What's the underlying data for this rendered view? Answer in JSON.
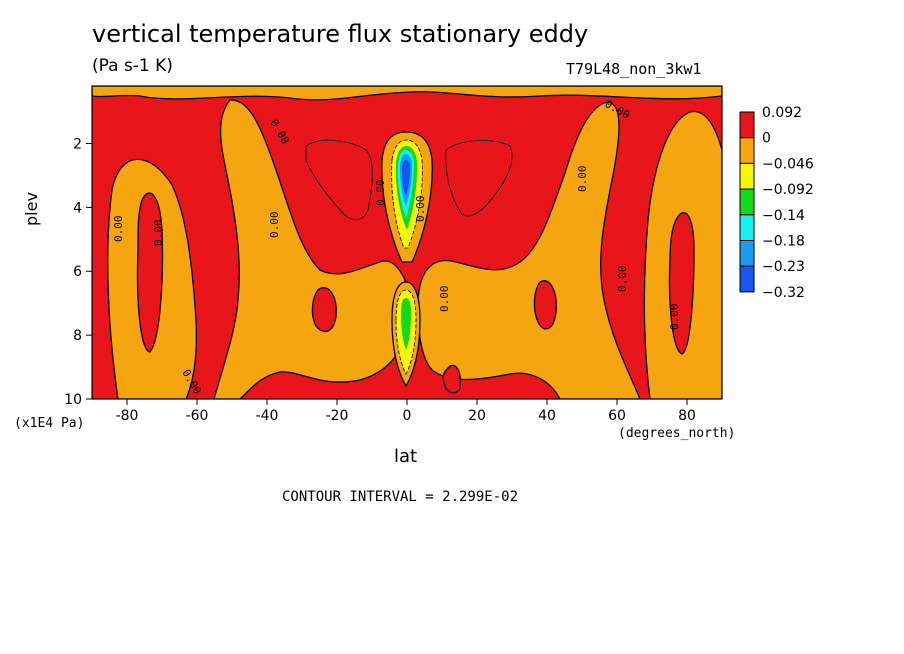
{
  "chart_data": {
    "type": "heatmap",
    "title": "vertical temperature flux stationary eddy",
    "units": "(Pa s-1 K)",
    "dataset": "T79L48_non_3kw1",
    "xlabel": "lat",
    "xunits": "(degrees_north)",
    "ylabel": "plev",
    "yunits": "(x1E4 Pa)",
    "contour_interval_text": "CONTOUR INTERVAL = 2.299E-02",
    "xlim": [
      -90,
      90
    ],
    "ylim": [
      10,
      0.2
    ],
    "xticks": [
      -80,
      -60,
      -40,
      -20,
      0,
      20,
      40,
      60,
      80
    ],
    "yticks": [
      2,
      4,
      6,
      8,
      10
    ],
    "colorbar": {
      "labels": [
        "0.092",
        "0",
        "−0.046",
        "−0.092",
        "−0.14",
        "−0.18",
        "−0.23",
        "−0.32"
      ],
      "colors": [
        "#e8161a",
        "#f5a50f",
        "#f8f50a",
        "#12d81e",
        "#18f0f0",
        "#189ef0",
        "#1856f0"
      ]
    },
    "contour_labels": [
      "0.00",
      "0.00",
      "0.00",
      "0.00",
      "0.00",
      "0.00",
      "0.00",
      "0.00",
      "0.00",
      "0.00",
      "0.00",
      "0.00"
    ],
    "colors": {
      "positive": "#e8161a",
      "zero_band": "#f5a50f",
      "yellow": "#f8f50a",
      "green": "#12d81e",
      "cyan": "#18f0f0",
      "mid_blue": "#189ef0",
      "blue": "#1856f0"
    }
  }
}
